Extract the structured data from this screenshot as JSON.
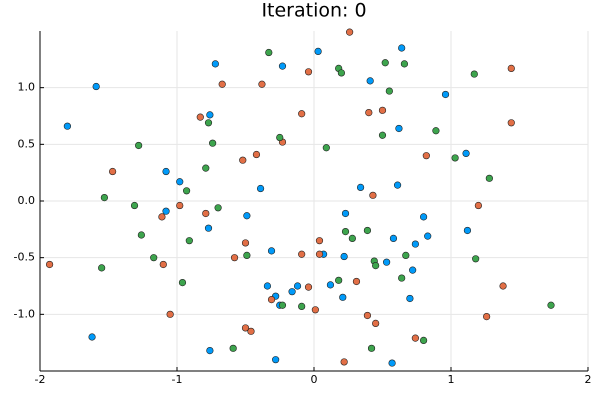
{
  "chart_data": {
    "type": "scatter",
    "title": "Iteration: 0",
    "xlim": [
      -2,
      2
    ],
    "xticks": [
      -2,
      -1,
      0,
      1,
      2
    ],
    "ylim": [
      -1.5,
      1.5
    ],
    "yticks": [
      {
        "value": -1,
        "label": "-1.0"
      },
      -0.5,
      {
        "value": 0,
        "label": "0.0"
      },
      0.5,
      {
        "value": 1,
        "label": "1.0"
      }
    ],
    "grid": true,
    "series": [
      {
        "color": "#009af9",
        "x": [
          -1.8,
          -1.59,
          -0.72,
          -0.23,
          0.03,
          0.41,
          0.64,
          0.96,
          0.62,
          -0.76,
          -1.08,
          -0.98,
          -1.08,
          -0.49,
          -0.39,
          0.34,
          0.61,
          1.11,
          0.23,
          0.8,
          -0.77,
          1.12,
          0.83,
          0.58,
          0.74,
          -0.31,
          0.22,
          0.07,
          0.53,
          0.72,
          -0.12,
          -0.34,
          0.12,
          -0.16,
          -0.28,
          -0.25,
          0.21,
          0.7,
          -1.62,
          -0.76,
          -0.28,
          0.57
        ],
        "values": [
          0.66,
          1.01,
          1.21,
          1.19,
          1.32,
          1.06,
          1.35,
          0.94,
          0.64,
          0.76,
          0.26,
          0.17,
          -0.09,
          -0.13,
          0.11,
          0.12,
          0.14,
          0.42,
          -0.11,
          -0.14,
          -0.24,
          -0.26,
          -0.31,
          -0.33,
          -0.38,
          -0.44,
          -0.49,
          -0.47,
          -0.54,
          -0.61,
          -0.75,
          -0.75,
          -0.74,
          -0.8,
          -0.84,
          -0.92,
          -0.85,
          -0.86,
          -1.2,
          -1.32,
          -1.4,
          -1.43
        ]
      },
      {
        "color": "#e26f46",
        "x": [
          -1.93,
          -1.47,
          -0.83,
          -0.67,
          -0.38,
          -0.04,
          0.26,
          -0.09,
          -0.23,
          -0.42,
          -0.52,
          0.4,
          0.5,
          1.44,
          1.44,
          0.82,
          0.43,
          1.2,
          -0.98,
          -1.11,
          -0.79,
          0.04,
          -0.5,
          -0.58,
          -0.09,
          0.04,
          -1.1,
          0.31,
          -0.04,
          1.38,
          -0.31,
          0.01,
          -1.05,
          0.39,
          0.45,
          -0.5,
          -0.46,
          0.74,
          1.26,
          0.22
        ],
        "values": [
          -0.56,
          0.26,
          0.74,
          1.03,
          1.03,
          1.14,
          1.49,
          0.77,
          0.52,
          0.41,
          0.36,
          0.78,
          0.8,
          1.17,
          0.69,
          0.4,
          0.05,
          -0.04,
          -0.04,
          -0.14,
          -0.11,
          -0.35,
          -0.37,
          -0.5,
          -0.47,
          -0.47,
          -0.56,
          -0.71,
          -0.76,
          -0.75,
          -0.87,
          -0.96,
          -1.0,
          -1.01,
          -1.08,
          -1.12,
          -1.15,
          -1.21,
          -1.02,
          -1.42
        ]
      },
      {
        "color": "#3da44d",
        "x": [
          -1.28,
          -1.53,
          -1.55,
          -1.31,
          -1.26,
          -1.17,
          -0.96,
          -0.93,
          -0.91,
          -0.77,
          -0.74,
          -0.79,
          -0.7,
          -0.33,
          -0.25,
          0.09,
          0.18,
          0.2,
          0.52,
          0.66,
          0.55,
          0.5,
          0.89,
          1.03,
          1.17,
          1.28,
          0.23,
          0.28,
          0.39,
          0.44,
          0.45,
          0.67,
          0.64,
          0.18,
          1.18,
          -0.49,
          -0.23,
          -0.09,
          -0.59,
          0.42,
          0.8,
          1.73
        ],
        "values": [
          0.49,
          0.03,
          -0.59,
          -0.04,
          -0.3,
          -0.5,
          -0.72,
          0.09,
          -0.35,
          0.69,
          0.51,
          0.29,
          -0.06,
          1.31,
          0.56,
          0.47,
          1.17,
          1.13,
          1.22,
          1.21,
          0.97,
          0.58,
          0.62,
          0.38,
          1.12,
          0.2,
          -0.27,
          -0.33,
          -0.26,
          -0.53,
          -0.57,
          -0.48,
          -0.68,
          -0.7,
          -0.51,
          -0.48,
          -0.92,
          -0.93,
          -1.3,
          -1.3,
          -1.23,
          -0.92
        ]
      }
    ]
  }
}
